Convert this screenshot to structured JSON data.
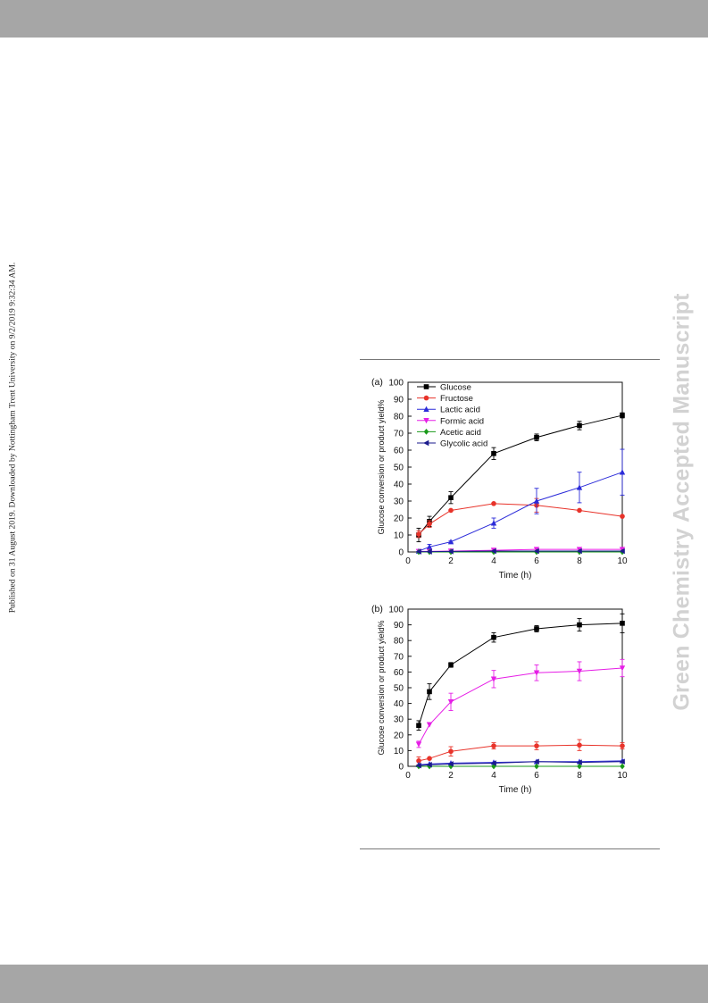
{
  "page": {
    "side_note": "Published on 31 August 2019. Downloaded by Nottingham Trent University on 9/2/2019 9:32:34 AM.",
    "watermark": "Green Chemistry Accepted Manuscript"
  },
  "legend": [
    "Glucose",
    "Fructose",
    "Lactic acid",
    "Formic acid",
    "Acetic acid",
    "Glycolic acid"
  ],
  "colors": {
    "Glucose": "#000000",
    "Fructose": "#e8332a",
    "Lactic acid": "#2b2bd9",
    "Formic acid": "#e61ee6",
    "Acetic acid": "#1a9a1a",
    "Glycolic acid": "#1a1a8c"
  },
  "chart_data": [
    {
      "type": "line",
      "panel_label": "(a)",
      "xlabel": "Time (h)",
      "ylabel": "Glucose conversion or product yield%",
      "xlim": [
        0,
        10
      ],
      "ylim": [
        0,
        100
      ],
      "xticks": [
        0,
        2,
        4,
        6,
        8,
        10
      ],
      "yticks": [
        0,
        10,
        20,
        30,
        40,
        50,
        60,
        70,
        80,
        90,
        100
      ],
      "x": [
        0.5,
        1,
        2,
        4,
        6,
        8,
        10
      ],
      "legend_position": "top-left",
      "series": [
        {
          "name": "Glucose",
          "marker": "square",
          "values": [
            10,
            18,
            32,
            58,
            67.5,
            74.5,
            80.5
          ],
          "errors": [
            4,
            3,
            3.5,
            3.5,
            2,
            2.5,
            1.5
          ]
        },
        {
          "name": "Fructose",
          "marker": "circle",
          "values": [
            10.5,
            16.5,
            24.5,
            28.5,
            27.5,
            24.5,
            21
          ],
          "errors": [
            2,
            2,
            0,
            0,
            4,
            0,
            0
          ]
        },
        {
          "name": "Lactic acid",
          "marker": "triangle-up",
          "values": [
            0.5,
            3,
            6,
            17,
            30,
            38,
            47
          ],
          "errors": [
            0,
            1.5,
            0.5,
            3,
            7.5,
            9,
            13.5
          ]
        },
        {
          "name": "Formic acid",
          "marker": "triangle-down",
          "values": [
            0.3,
            0.3,
            0.5,
            1,
            1.5,
            1.5,
            1.5
          ],
          "errors": [
            0,
            0,
            0,
            0,
            0,
            0,
            0
          ]
        },
        {
          "name": "Acetic acid",
          "marker": "diamond",
          "values": [
            0,
            0,
            0,
            0,
            0,
            0,
            0
          ],
          "errors": [
            0,
            0,
            0,
            0,
            0,
            0,
            0
          ]
        },
        {
          "name": "Glycolic acid",
          "marker": "triangle-left",
          "values": [
            0.2,
            0.2,
            0.3,
            0.5,
            0.5,
            0.5,
            0.5
          ],
          "errors": [
            0,
            0,
            0,
            0,
            0,
            0,
            0
          ]
        }
      ]
    },
    {
      "type": "line",
      "panel_label": "(b)",
      "xlabel": "Time (h)",
      "ylabel": "Glucose conversion or product yield%",
      "xlim": [
        0,
        10
      ],
      "ylim": [
        0,
        100
      ],
      "xticks": [
        0,
        2,
        4,
        6,
        8,
        10
      ],
      "yticks": [
        0,
        10,
        20,
        30,
        40,
        50,
        60,
        70,
        80,
        90,
        100
      ],
      "x": [
        0.5,
        1,
        2,
        4,
        6,
        8,
        10
      ],
      "series": [
        {
          "name": "Glucose",
          "marker": "square",
          "values": [
            26,
            47.5,
            64.5,
            82,
            87.5,
            90,
            91
          ],
          "errors": [
            3,
            5,
            1.5,
            3,
            2,
            4,
            6
          ]
        },
        {
          "name": "Fructose",
          "marker": "circle",
          "values": [
            3.5,
            5,
            9.5,
            13,
            13,
            13.5,
            13
          ],
          "errors": [
            2.5,
            0,
            3,
            2,
            2.5,
            3.5,
            2
          ]
        },
        {
          "name": "Lactic acid",
          "marker": "triangle-up",
          "values": [
            1,
            1.5,
            2,
            2.5,
            3,
            3,
            3.5
          ],
          "errors": [
            0,
            0,
            0,
            0,
            0,
            0,
            0
          ]
        },
        {
          "name": "Formic acid",
          "marker": "triangle-down",
          "values": [
            14,
            26.5,
            41,
            55.5,
            59.5,
            60.5,
            62.5
          ],
          "errors": [
            2,
            0,
            5.5,
            5.5,
            5,
            6,
            5.5
          ]
        },
        {
          "name": "Acetic acid",
          "marker": "diamond",
          "values": [
            0,
            0,
            0,
            0,
            0,
            0,
            0
          ],
          "errors": [
            0,
            0,
            0,
            0,
            0,
            0,
            0
          ]
        },
        {
          "name": "Glycolic acid",
          "marker": "triangle-left",
          "values": [
            0.5,
            1,
            1.5,
            2,
            3,
            2.5,
            3
          ],
          "errors": [
            0,
            0,
            0,
            0,
            0,
            0,
            0
          ]
        }
      ]
    }
  ]
}
